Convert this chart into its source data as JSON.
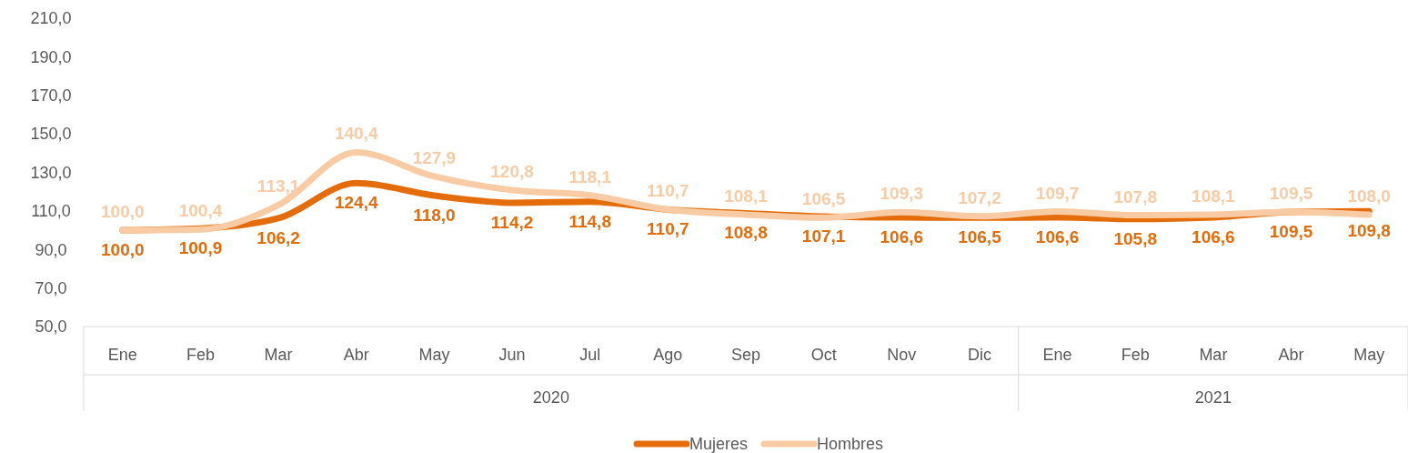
{
  "chart_data": {
    "type": "line",
    "categories": [
      "Ene",
      "Feb",
      "Mar",
      "Abr",
      "May",
      "Jun",
      "Jul",
      "Ago",
      "Sep",
      "Oct",
      "Nov",
      "Dic",
      "Ene",
      "Feb",
      "Mar",
      "Abr",
      "May"
    ],
    "annotations": [
      "2020",
      "2021"
    ],
    "ylim": [
      50,
      210
    ],
    "yticks": [
      {
        "value": 50,
        "label": "50,0"
      },
      {
        "value": 70,
        "label": "70,0"
      },
      {
        "value": 90,
        "label": "90,0"
      },
      {
        "value": 110,
        "label": "110,0"
      },
      {
        "value": 130,
        "label": "130,0"
      },
      {
        "value": 150,
        "label": "150,0"
      },
      {
        "value": 170,
        "label": "170,0"
      },
      {
        "value": 190,
        "label": "190,0"
      },
      {
        "value": 210,
        "label": "210,0"
      }
    ],
    "grid": false,
    "legend": "bottom",
    "marker": "none",
    "line_style": "solid",
    "series": [
      {
        "name": "Mujeres",
        "color": "#e46c0a",
        "values": [
          100.0,
          100.9,
          106.2,
          124.4,
          118.0,
          114.2,
          114.8,
          110.7,
          108.8,
          107.1,
          106.6,
          106.5,
          106.6,
          105.8,
          106.6,
          109.5,
          109.8
        ],
        "value_labels": [
          "100,0",
          "100,9",
          "106,2",
          "124,4",
          "118,0",
          "114,2",
          "114,8",
          "110,7",
          "108,8",
          "107,1",
          "106,6",
          "106,5",
          "106,6",
          "105,8",
          "106,6",
          "109,5",
          "109,8"
        ]
      },
      {
        "name": "Hombres",
        "color": "#f8cba4",
        "values": [
          100.0,
          100.4,
          113.1,
          140.4,
          127.9,
          120.8,
          118.1,
          110.7,
          108.1,
          106.5,
          109.3,
          107.2,
          109.7,
          107.8,
          108.1,
          109.5,
          108.0
        ],
        "value_labels": [
          "100,0",
          "100,4",
          "113,1",
          "140,4",
          "127,9",
          "120,8",
          "118,1",
          "110,7",
          "108,1",
          "106,5",
          "109,3",
          "107,2",
          "109,7",
          "107,8",
          "108,1",
          "109,5",
          "108,0"
        ]
      }
    ]
  }
}
